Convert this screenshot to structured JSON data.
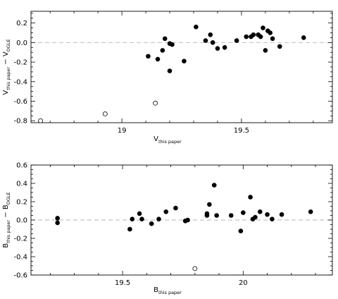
{
  "chart_data": [
    {
      "type": "scatter",
      "xlabel": {
        "main": "V",
        "sub": "this paper"
      },
      "ylabel": {
        "main_a": "V",
        "sub_a": "this paper",
        "minus": "−",
        "main_b": "V",
        "sub_b": "OGLE"
      },
      "xlim": [
        18.62,
        19.88
      ],
      "ylim": [
        -0.82,
        0.32
      ],
      "xticks": [
        {
          "value": 19,
          "label": "19"
        },
        {
          "value": 19.5,
          "label": "19.5"
        }
      ],
      "yticks": [
        {
          "value": 0.2,
          "label": "0.2"
        },
        {
          "value": 0.0,
          "label": "0.0"
        },
        {
          "value": -0.2,
          "label": "-0.2"
        },
        {
          "value": -0.4,
          "label": "-0.4"
        },
        {
          "value": -0.6,
          "label": "-0.6"
        },
        {
          "value": -0.8,
          "label": "-0.8"
        }
      ],
      "reference_line": 0.0,
      "series": [
        {
          "marker": "filled",
          "points": [
            [
              19.11,
              -0.14
            ],
            [
              19.15,
              -0.17
            ],
            [
              19.17,
              -0.08
            ],
            [
              19.18,
              0.04
            ],
            [
              19.2,
              -0.01
            ],
            [
              19.21,
              -0.02
            ],
            [
              19.2,
              -0.29
            ],
            [
              19.26,
              -0.19
            ],
            [
              19.31,
              0.16
            ],
            [
              19.35,
              0.02
            ],
            [
              19.37,
              0.08
            ],
            [
              19.38,
              0.0
            ],
            [
              19.4,
              -0.06
            ],
            [
              19.43,
              -0.05
            ],
            [
              19.48,
              0.02
            ],
            [
              19.52,
              0.06
            ],
            [
              19.54,
              0.06
            ],
            [
              19.55,
              0.08
            ],
            [
              19.57,
              0.08
            ],
            [
              19.58,
              0.06
            ],
            [
              19.59,
              0.15
            ],
            [
              19.61,
              0.12
            ],
            [
              19.62,
              0.1
            ],
            [
              19.6,
              -0.08
            ],
            [
              19.63,
              0.04
            ],
            [
              19.66,
              -0.04
            ],
            [
              19.76,
              0.05
            ]
          ]
        },
        {
          "marker": "open",
          "points": [
            [
              18.66,
              -0.8
            ],
            [
              18.93,
              -0.73
            ],
            [
              19.14,
              -0.62
            ]
          ]
        }
      ]
    },
    {
      "type": "scatter",
      "xlabel": {
        "main": "B",
        "sub": "this paper"
      },
      "ylabel": {
        "main_a": "B",
        "sub_a": "this paper",
        "minus": "−",
        "main_b": "B",
        "sub_b": "OGLE"
      },
      "xlim": [
        19.12,
        20.37
      ],
      "ylim": [
        -0.6,
        0.6
      ],
      "xticks": [
        {
          "value": 19.5,
          "label": "19.5"
        },
        {
          "value": 20,
          "label": "20"
        }
      ],
      "yticks": [
        {
          "value": 0.6,
          "label": "0.6"
        },
        {
          "value": 0.4,
          "label": "0.4"
        },
        {
          "value": 0.2,
          "label": "0.2"
        },
        {
          "value": 0.0,
          "label": "0.0"
        },
        {
          "value": -0.2,
          "label": "-0.2"
        },
        {
          "value": -0.4,
          "label": "-0.4"
        },
        {
          "value": -0.6,
          "label": "-0.6"
        }
      ],
      "reference_line": 0.0,
      "series": [
        {
          "marker": "filled",
          "points": [
            [
              19.23,
              0.02
            ],
            [
              19.23,
              -0.03
            ],
            [
              19.53,
              -0.1
            ],
            [
              19.54,
              0.01
            ],
            [
              19.57,
              0.07
            ],
            [
              19.58,
              0.01
            ],
            [
              19.62,
              -0.04
            ],
            [
              19.65,
              0.01
            ],
            [
              19.68,
              0.09
            ],
            [
              19.72,
              0.13
            ],
            [
              19.76,
              -0.01
            ],
            [
              19.77,
              0.0
            ],
            [
              19.85,
              0.05
            ],
            [
              19.85,
              0.07
            ],
            [
              19.86,
              0.17
            ],
            [
              19.88,
              0.38
            ],
            [
              19.89,
              0.05
            ],
            [
              19.95,
              0.05
            ],
            [
              19.99,
              -0.12
            ],
            [
              20.0,
              0.08
            ],
            [
              20.03,
              0.25
            ],
            [
              20.04,
              0.01
            ],
            [
              20.05,
              0.03
            ],
            [
              20.07,
              0.09
            ],
            [
              20.1,
              0.06
            ],
            [
              20.12,
              0.01
            ],
            [
              20.16,
              0.06
            ],
            [
              20.28,
              0.09
            ]
          ]
        },
        {
          "marker": "open",
          "points": [
            [
              19.8,
              -0.53
            ]
          ]
        }
      ]
    }
  ]
}
